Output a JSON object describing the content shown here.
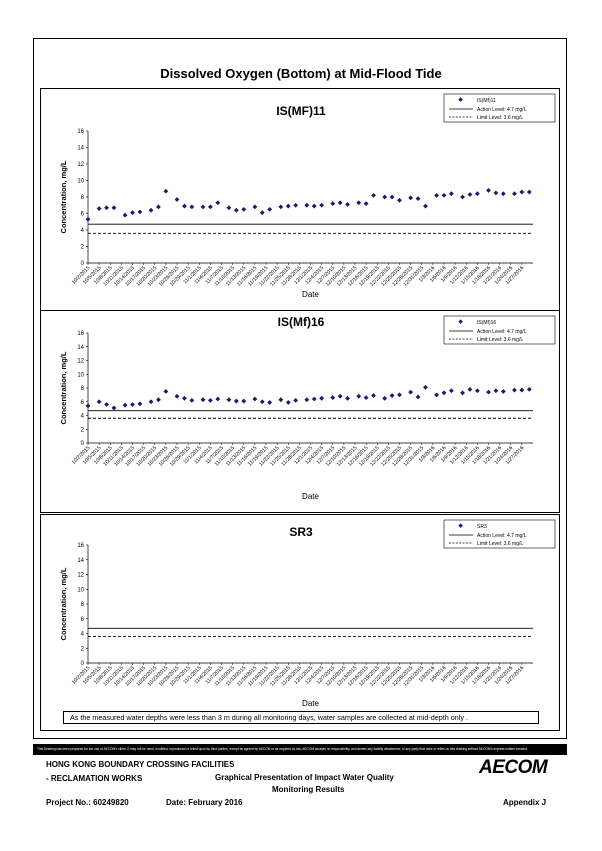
{
  "page_title": "Dissolved Oxygen (Bottom) at Mid-Flood Tide",
  "note": "As the measured water depths were less than 3 m during all monitoring days, water samples are collected  at  mid-depth only .",
  "disclaimer": "This Drawing has been prepared for the use of AECOM's client. It may not be used, modified, reproduced or relied upon by third parties, except as agreed by AECOM or as required by law. AECOM accepts no responsibility, and denies any liability whatsoever, to any party that uses or relies on this drawing without AECOM's express written consent.",
  "footer": {
    "project_name_line1": "HONG KONG BOUNDARY CROSSING FACILITIES",
    "project_name_line2": "- RECLAMATION WORKS",
    "drawing_title_line1": "Graphical Presentation of Impact Water Quality",
    "drawing_title_line2": "Monitoring Results",
    "project_no": "Project No.: 60249820",
    "date": "Date: February 2016",
    "appendix": "Appendix J",
    "logo_text": "AECOM"
  },
  "colors": {
    "marker": "#1a1a6e",
    "line": "#000000"
  },
  "chart_data": [
    {
      "type": "scatter",
      "title": "IS(MF)11",
      "xlabel": "Date",
      "ylabel": "Concentration, mg/L",
      "ylim": [
        0,
        16
      ],
      "yticks": [
        0,
        2,
        4,
        6,
        8,
        10,
        12,
        14,
        16
      ],
      "xticks": [
        "10/2/2015",
        "10/5/2015",
        "10/8/2015",
        "10/11/2015",
        "10/14/2015",
        "10/17/2015",
        "10/20/2015",
        "10/23/2015",
        "10/26/2015",
        "10/29/2015",
        "11/1/2015",
        "11/4/2015",
        "11/7/2015",
        "11/10/2015",
        "11/13/2015",
        "11/16/2015",
        "11/19/2015",
        "11/22/2015",
        "11/25/2015",
        "11/28/2015",
        "12/1/2015",
        "12/4/2015",
        "12/7/2015",
        "12/10/2015",
        "12/13/2015",
        "12/16/2015",
        "12/19/2015",
        "12/22/2015",
        "12/25/2015",
        "12/28/2015",
        "12/31/2015",
        "1/3/2016",
        "1/6/2016",
        "1/9/2016",
        "1/12/2016",
        "1/15/2016",
        "1/18/2016",
        "1/21/2016",
        "1/24/2016",
        "1/27/2016"
      ],
      "x_start": "10/2/2015",
      "x_end": "1/30/2016",
      "legend_position": "top-right",
      "series": [
        {
          "name": "IS(Mf)11",
          "x": [
            "10/2/2015",
            "10/5/2015",
            "10/7/2015",
            "10/9/2015",
            "10/12/2015",
            "10/14/2015",
            "10/16/2015",
            "10/19/2015",
            "10/21/2015",
            "10/23/2015",
            "10/26/2015",
            "10/28/2015",
            "10/30/2015",
            "11/2/2015",
            "11/4/2015",
            "11/6/2015",
            "11/9/2015",
            "11/11/2015",
            "11/13/2015",
            "11/16/2015",
            "11/18/2015",
            "11/20/2015",
            "11/23/2015",
            "11/25/2015",
            "11/27/2015",
            "11/30/2015",
            "12/2/2015",
            "12/4/2015",
            "12/7/2015",
            "12/9/2015",
            "12/11/2015",
            "12/14/2015",
            "12/16/2015",
            "12/18/2015",
            "12/21/2015",
            "12/23/2015",
            "12/25/2015",
            "12/28/2015",
            "12/30/2015",
            "1/1/2016",
            "1/4/2016",
            "1/6/2016",
            "1/8/2016",
            "1/11/2016",
            "1/13/2016",
            "1/15/2016",
            "1/18/2016",
            "1/20/2016",
            "1/22/2016",
            "1/25/2016",
            "1/27/2016",
            "1/29/2016"
          ],
          "y": [
            5.3,
            6.6,
            6.7,
            6.7,
            5.8,
            6.1,
            6.2,
            6.4,
            6.8,
            8.7,
            7.7,
            6.9,
            6.8,
            6.8,
            6.8,
            7.3,
            6.7,
            6.4,
            6.5,
            6.8,
            6.1,
            6.5,
            6.8,
            6.9,
            7.0,
            7.0,
            6.9,
            7.0,
            7.2,
            7.3,
            7.1,
            7.3,
            7.2,
            8.2,
            8.0,
            8.0,
            7.6,
            7.9,
            7.8,
            6.9,
            8.2,
            8.2,
            8.4,
            8.0,
            8.3,
            8.4,
            8.8,
            8.5,
            8.4,
            8.4,
            8.6,
            8.6
          ]
        }
      ],
      "reference_lines": [
        {
          "name": "Action Level: 4.7 mg/L",
          "value": 4.7,
          "style": "solid"
        },
        {
          "name": "Limit Level: 3.6 mg/L",
          "value": 3.6,
          "style": "dashed"
        }
      ]
    },
    {
      "type": "scatter",
      "title": "IS(Mf)16",
      "xlabel": "Date",
      "ylabel": "Concentration, mg/L",
      "ylim": [
        0,
        16
      ],
      "yticks": [
        0,
        2,
        4,
        6,
        8,
        10,
        12,
        14,
        16
      ],
      "xticks": [
        "10/2/2015",
        "10/5/2015",
        "10/8/2015",
        "10/11/2015",
        "10/14/2015",
        "10/17/2015",
        "10/20/2015",
        "10/23/2015",
        "10/26/2015",
        "10/29/2015",
        "11/1/2015",
        "11/4/2015",
        "11/7/2015",
        "11/10/2015",
        "11/13/2015",
        "11/16/2015",
        "11/19/2015",
        "11/22/2015",
        "11/25/2015",
        "11/28/2015",
        "12/1/2015",
        "12/4/2015",
        "12/7/2015",
        "12/10/2015",
        "12/13/2015",
        "12/16/2015",
        "12/19/2015",
        "12/22/2015",
        "12/25/2015",
        "12/28/2015",
        "12/31/2015",
        "1/3/2016",
        "1/6/2016",
        "1/9/2016",
        "1/12/2016",
        "1/15/2016",
        "1/18/2016",
        "1/21/2016",
        "1/24/2016",
        "1/27/2016"
      ],
      "x_start": "10/2/2015",
      "x_end": "1/30/2016",
      "legend_position": "top-right",
      "series": [
        {
          "name": "IS(Mf)16",
          "x": [
            "10/2/2015",
            "10/5/2015",
            "10/7/2015",
            "10/9/2015",
            "10/12/2015",
            "10/14/2015",
            "10/16/2015",
            "10/19/2015",
            "10/21/2015",
            "10/23/2015",
            "10/26/2015",
            "10/28/2015",
            "10/30/2015",
            "11/2/2015",
            "11/4/2015",
            "11/6/2015",
            "11/9/2015",
            "11/11/2015",
            "11/13/2015",
            "11/16/2015",
            "11/18/2015",
            "11/20/2015",
            "11/23/2015",
            "11/25/2015",
            "11/27/2015",
            "11/30/2015",
            "12/2/2015",
            "12/4/2015",
            "12/7/2015",
            "12/9/2015",
            "12/11/2015",
            "12/14/2015",
            "12/16/2015",
            "12/18/2015",
            "12/21/2015",
            "12/23/2015",
            "12/25/2015",
            "12/28/2015",
            "12/30/2015",
            "1/1/2016",
            "1/4/2016",
            "1/6/2016",
            "1/8/2016",
            "1/11/2016",
            "1/13/2016",
            "1/15/2016",
            "1/18/2016",
            "1/20/2016",
            "1/22/2016",
            "1/25/2016",
            "1/27/2016",
            "1/29/2016"
          ],
          "y": [
            5.4,
            6.0,
            5.6,
            5.1,
            5.5,
            5.6,
            5.7,
            6.0,
            6.3,
            7.5,
            6.8,
            6.5,
            6.2,
            6.3,
            6.2,
            6.4,
            6.3,
            6.1,
            6.1,
            6.4,
            6.0,
            5.9,
            6.3,
            5.9,
            6.2,
            6.3,
            6.4,
            6.5,
            6.6,
            6.8,
            6.5,
            6.8,
            6.6,
            6.9,
            6.5,
            6.9,
            7.0,
            7.4,
            6.7,
            8.1,
            7.0,
            7.3,
            7.6,
            7.3,
            7.8,
            7.6,
            7.4,
            7.6,
            7.5,
            7.7,
            7.7,
            7.8
          ]
        }
      ],
      "reference_lines": [
        {
          "name": "Action Level: 4.7 mg/L",
          "value": 4.7,
          "style": "solid"
        },
        {
          "name": "Limit Level: 3.6 mg/L",
          "value": 3.6,
          "style": "dashed"
        }
      ]
    },
    {
      "type": "scatter",
      "title": "SR3",
      "xlabel": "Date",
      "ylabel": "Concentration, mg/L",
      "ylim": [
        0,
        16
      ],
      "yticks": [
        0,
        2,
        4,
        6,
        8,
        10,
        12,
        14,
        16
      ],
      "xticks": [
        "10/2/2015",
        "10/5/2015",
        "10/8/2015",
        "10/11/2015",
        "10/14/2015",
        "10/17/2015",
        "10/20/2015",
        "10/23/2015",
        "10/26/2015",
        "10/29/2015",
        "11/1/2015",
        "11/4/2015",
        "11/7/2015",
        "11/10/2015",
        "11/13/2015",
        "11/16/2015",
        "11/19/2015",
        "11/22/2015",
        "11/25/2015",
        "11/28/2015",
        "12/1/2015",
        "12/4/2015",
        "12/7/2015",
        "12/10/2015",
        "12/13/2015",
        "12/16/2015",
        "12/19/2015",
        "12/22/2015",
        "12/25/2015",
        "12/28/2015",
        "12/31/2015",
        "1/3/2016",
        "1/6/2016",
        "1/9/2016",
        "1/12/2016",
        "1/15/2016",
        "1/18/2016",
        "1/21/2016",
        "1/24/2016",
        "1/27/2016"
      ],
      "x_start": "10/2/2015",
      "x_end": "1/30/2016",
      "legend_position": "top-right",
      "series": [
        {
          "name": "SR3",
          "x": [],
          "y": []
        }
      ],
      "reference_lines": [
        {
          "name": "Action Level: 4.7 mg/L",
          "value": 4.7,
          "style": "solid"
        },
        {
          "name": "Limit Level: 3.6 mg/L",
          "value": 3.6,
          "style": "dashed"
        }
      ]
    }
  ]
}
